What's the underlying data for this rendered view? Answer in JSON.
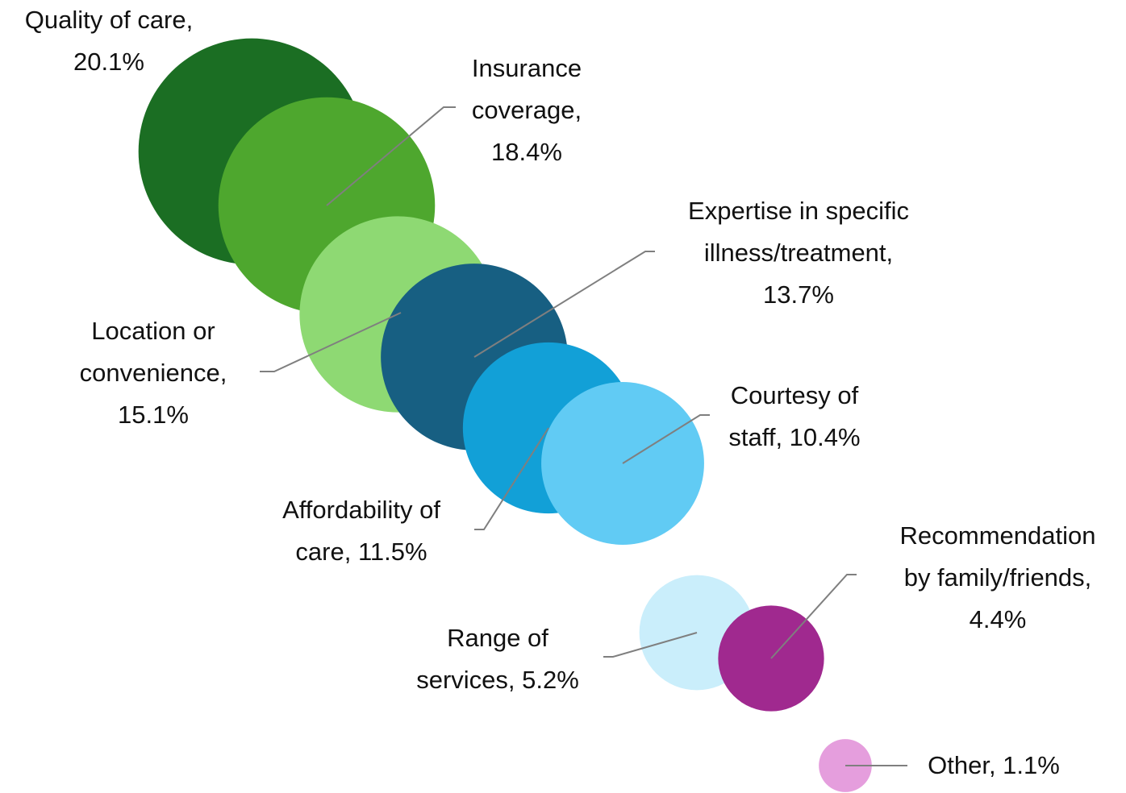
{
  "chart_data": {
    "type": "bubble",
    "labels": [
      "Quality of care,\n20.1%",
      "Insurance\ncoverage,\n18.4%",
      "Location or\nconvenience,\n15.1%",
      "Expertise in specific\nillness/treatment,\n13.7%",
      "Affordability of\ncare, 11.5%",
      "Courtesy of\nstaff, 10.4%",
      "Range of\nservices, 5.2%",
      "Recommendation\nby family/friends,\n4.4%",
      "Other, 1.1%"
    ],
    "values": [
      20.1,
      18.4,
      15.1,
      13.7,
      11.5,
      10.4,
      5.2,
      4.4,
      1.1
    ],
    "colors": [
      "#1b6e23",
      "#4ea72e",
      "#8ed973",
      "#175f82",
      "#12a0d7",
      "#61cbf4",
      "#caeefb",
      "#a0298f",
      "#e59edd"
    ]
  }
}
